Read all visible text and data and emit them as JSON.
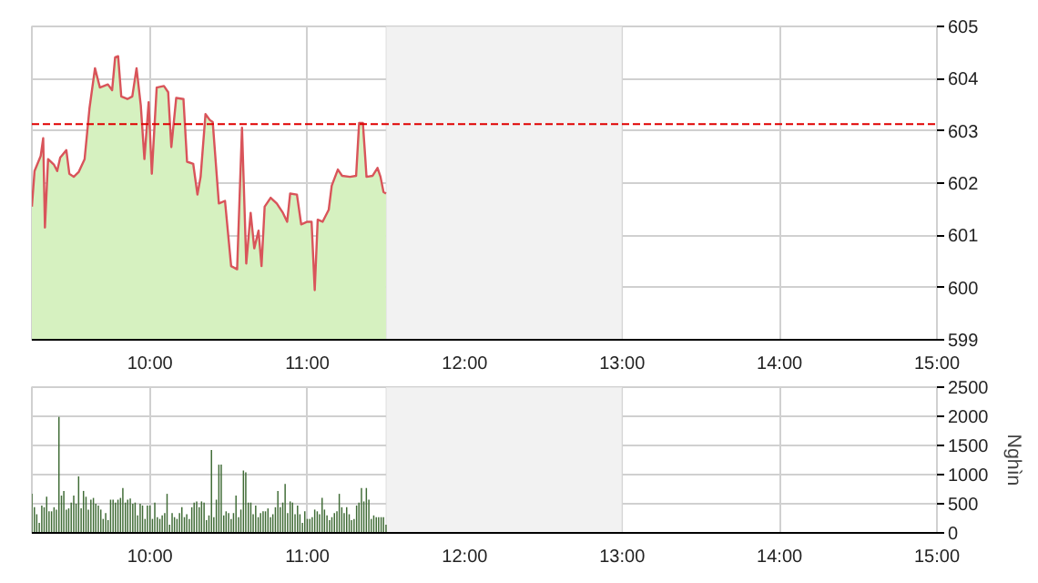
{
  "chart_data": [
    {
      "type": "area",
      "grid": true,
      "xlim": [
        9.25,
        15
      ],
      "xticks": [
        {
          "value": 10,
          "label": "10:00"
        },
        {
          "value": 11,
          "label": "11:00"
        },
        {
          "value": 12,
          "label": "12:00"
        },
        {
          "value": 13,
          "label": "13:00"
        },
        {
          "value": 14,
          "label": "14:00"
        },
        {
          "value": 15,
          "label": "15:00"
        }
      ],
      "ylim": [
        599,
        605
      ],
      "yticks": [
        599,
        600,
        601,
        602,
        603,
        604,
        605
      ],
      "bands": [
        {
          "axis": "x",
          "from": 11.5,
          "to": 13,
          "color": "#f2f2f2"
        }
      ],
      "ref_lines": [
        {
          "axis": "y",
          "value": 603.13,
          "color": "#e00000",
          "line_style": "dashed"
        }
      ],
      "series": [
        {
          "color": "#d6f1c0",
          "x": [
            9.25,
            9.267,
            9.306,
            9.322,
            9.333,
            9.353,
            9.391,
            9.411,
            9.43,
            9.469,
            9.488,
            9.516,
            9.547,
            9.585,
            9.616,
            9.651,
            9.682,
            9.733,
            9.76,
            9.779,
            9.798,
            9.818,
            9.857,
            9.888,
            9.915,
            9.942,
            9.965,
            9.992,
            10.012,
            10.043,
            10.089,
            10.116,
            10.136,
            10.167,
            10.213,
            10.236,
            10.275,
            10.302,
            10.322,
            10.353,
            10.38,
            10.399,
            10.438,
            10.477,
            10.516,
            10.554,
            10.585,
            10.612,
            10.64,
            10.663,
            10.69,
            10.709,
            10.729,
            10.767,
            10.806,
            10.845,
            10.872,
            10.891,
            10.934,
            10.961,
            11.0,
            11.027,
            11.047,
            11.066,
            11.097,
            11.136,
            11.155,
            11.194,
            11.221,
            11.271,
            11.31,
            11.329,
            11.353,
            11.368,
            11.376,
            11.415,
            11.446,
            11.465,
            11.484,
            11.5
          ],
          "values": [
            601.55,
            602.23,
            602.52,
            602.86,
            601.15,
            602.46,
            602.35,
            602.23,
            602.49,
            602.63,
            602.18,
            602.12,
            602.21,
            602.46,
            603.43,
            604.2,
            603.83,
            603.89,
            603.78,
            604.41,
            604.43,
            603.66,
            603.61,
            603.66,
            604.2,
            603.49,
            602.46,
            603.55,
            602.18,
            603.83,
            603.86,
            603.74,
            602.69,
            603.63,
            603.61,
            602.41,
            602.37,
            601.78,
            602.12,
            603.32,
            603.21,
            603.17,
            601.61,
            601.66,
            600.41,
            600.35,
            603.06,
            600.46,
            601.43,
            600.75,
            601.09,
            600.41,
            601.55,
            601.72,
            601.61,
            601.43,
            601.26,
            601.8,
            601.78,
            601.21,
            601.26,
            601.26,
            599.95,
            601.3,
            601.26,
            601.49,
            601.95,
            602.26,
            602.14,
            602.12,
            602.14,
            603.15,
            603.15,
            602.49,
            602.12,
            602.14,
            602.29,
            602.12,
            601.83,
            601.8
          ]
        },
        {
          "type": "line",
          "color": "#d9545a",
          "x": [
            9.25,
            9.267,
            9.306,
            9.322,
            9.333,
            9.353,
            9.391,
            9.411,
            9.43,
            9.469,
            9.488,
            9.516,
            9.547,
            9.585,
            9.616,
            9.651,
            9.682,
            9.733,
            9.76,
            9.779,
            9.798,
            9.818,
            9.857,
            9.888,
            9.915,
            9.942,
            9.965,
            9.992,
            10.012,
            10.043,
            10.089,
            10.116,
            10.136,
            10.167,
            10.213,
            10.236,
            10.275,
            10.302,
            10.322,
            10.353,
            10.38,
            10.399,
            10.438,
            10.477,
            10.516,
            10.554,
            10.585,
            10.612,
            10.64,
            10.663,
            10.69,
            10.709,
            10.729,
            10.767,
            10.806,
            10.845,
            10.872,
            10.891,
            10.934,
            10.961,
            11.0,
            11.027,
            11.047,
            11.066,
            11.097,
            11.136,
            11.155,
            11.194,
            11.221,
            11.271,
            11.31,
            11.329,
            11.353,
            11.368,
            11.376,
            11.415,
            11.446,
            11.465,
            11.484,
            11.5
          ],
          "values": [
            601.55,
            602.23,
            602.52,
            602.86,
            601.15,
            602.46,
            602.35,
            602.23,
            602.49,
            602.63,
            602.18,
            602.12,
            602.21,
            602.46,
            603.43,
            604.2,
            603.83,
            603.89,
            603.78,
            604.41,
            604.43,
            603.66,
            603.61,
            603.66,
            604.2,
            603.49,
            602.46,
            603.55,
            602.18,
            603.83,
            603.86,
            603.74,
            602.69,
            603.63,
            603.61,
            602.41,
            602.37,
            601.78,
            602.12,
            603.32,
            603.21,
            603.17,
            601.61,
            601.66,
            600.41,
            600.35,
            603.06,
            600.46,
            601.43,
            600.75,
            601.09,
            600.41,
            601.55,
            601.72,
            601.61,
            601.43,
            601.26,
            601.8,
            601.78,
            601.21,
            601.26,
            601.26,
            599.95,
            601.3,
            601.26,
            601.49,
            601.95,
            602.26,
            602.14,
            602.12,
            602.14,
            603.15,
            603.15,
            602.49,
            602.12,
            602.14,
            602.29,
            602.12,
            601.83,
            601.8
          ]
        }
      ]
    },
    {
      "type": "bar",
      "grid": true,
      "ylabel": "Nghìn",
      "xlim": [
        9.25,
        15
      ],
      "xticks": [
        {
          "value": 10,
          "label": "10:00"
        },
        {
          "value": 11,
          "label": "11:00"
        },
        {
          "value": 12,
          "label": "12:00"
        },
        {
          "value": 13,
          "label": "13:00"
        },
        {
          "value": 14,
          "label": "14:00"
        },
        {
          "value": 15,
          "label": "15:00"
        }
      ],
      "ylim": [
        0,
        2500
      ],
      "yticks": [
        0,
        500,
        1000,
        1500,
        2000,
        2500
      ],
      "bands": [
        {
          "axis": "x",
          "from": 11.5,
          "to": 13,
          "color": "#f2f2f2"
        }
      ],
      "series": [
        {
          "color": "#3f6b35",
          "x": [
            9.25,
            9.266,
            9.281,
            9.297,
            9.313,
            9.328,
            9.344,
            9.359,
            9.375,
            9.391,
            9.406,
            9.422,
            9.438,
            9.453,
            9.469,
            9.484,
            9.5,
            9.516,
            9.531,
            9.547,
            9.563,
            9.578,
            9.594,
            9.609,
            9.625,
            9.641,
            9.656,
            9.672,
            9.688,
            9.703,
            9.719,
            9.734,
            9.75,
            9.766,
            9.781,
            9.797,
            9.813,
            9.828,
            9.844,
            9.859,
            9.875,
            9.891,
            9.906,
            9.922,
            9.938,
            9.953,
            9.969,
            9.984,
            10,
            10.016,
            10.031,
            10.047,
            10.063,
            10.078,
            10.094,
            10.109,
            10.125,
            10.141,
            10.156,
            10.172,
            10.188,
            10.203,
            10.219,
            10.234,
            10.25,
            10.266,
            10.281,
            10.297,
            10.313,
            10.328,
            10.344,
            10.359,
            10.375,
            10.391,
            10.406,
            10.422,
            10.438,
            10.453,
            10.469,
            10.484,
            10.5,
            10.516,
            10.531,
            10.547,
            10.563,
            10.578,
            10.594,
            10.609,
            10.625,
            10.641,
            10.656,
            10.672,
            10.688,
            10.703,
            10.719,
            10.734,
            10.75,
            10.766,
            10.781,
            10.797,
            10.813,
            10.828,
            10.844,
            10.859,
            10.875,
            10.891,
            10.906,
            10.922,
            10.938,
            10.953,
            10.969,
            10.984,
            11,
            11.016,
            11.031,
            11.047,
            11.063,
            11.078,
            11.094,
            11.109,
            11.125,
            11.141,
            11.156,
            11.172,
            11.188,
            11.203,
            11.219,
            11.234,
            11.25,
            11.266,
            11.281,
            11.297,
            11.313,
            11.328,
            11.344,
            11.359,
            11.375,
            11.391,
            11.406,
            11.422,
            11.438,
            11.453,
            11.469,
            11.484,
            11.5
          ],
          "values": [
            670,
            440,
            320,
            170,
            470,
            440,
            620,
            370,
            370,
            440,
            400,
            1990,
            640,
            720,
            400,
            420,
            520,
            640,
            500,
            970,
            420,
            720,
            620,
            400,
            570,
            600,
            500,
            470,
            400,
            240,
            340,
            220,
            570,
            570,
            520,
            570,
            600,
            770,
            520,
            570,
            590,
            500,
            520,
            300,
            500,
            470,
            240,
            470,
            470,
            240,
            520,
            270,
            240,
            300,
            340,
            670,
            140,
            340,
            270,
            240,
            340,
            440,
            270,
            320,
            240,
            440,
            520,
            540,
            440,
            540,
            520,
            220,
            300,
            1420,
            270,
            570,
            1170,
            1170,
            300,
            370,
            340,
            240,
            340,
            640,
            270,
            400,
            1070,
            1040,
            520,
            520,
            320,
            470,
            270,
            340,
            370,
            370,
            420,
            270,
            320,
            440,
            720,
            440,
            520,
            840,
            340,
            540,
            520,
            320,
            470,
            320,
            170,
            370,
            240,
            240,
            270,
            400,
            370,
            320,
            600,
            400,
            300,
            220,
            270,
            340,
            370,
            670,
            440,
            340,
            440,
            320,
            220,
            240,
            470,
            520,
            770,
            540,
            770,
            570,
            240,
            300,
            270,
            270,
            270,
            270,
            140
          ]
        }
      ]
    }
  ]
}
